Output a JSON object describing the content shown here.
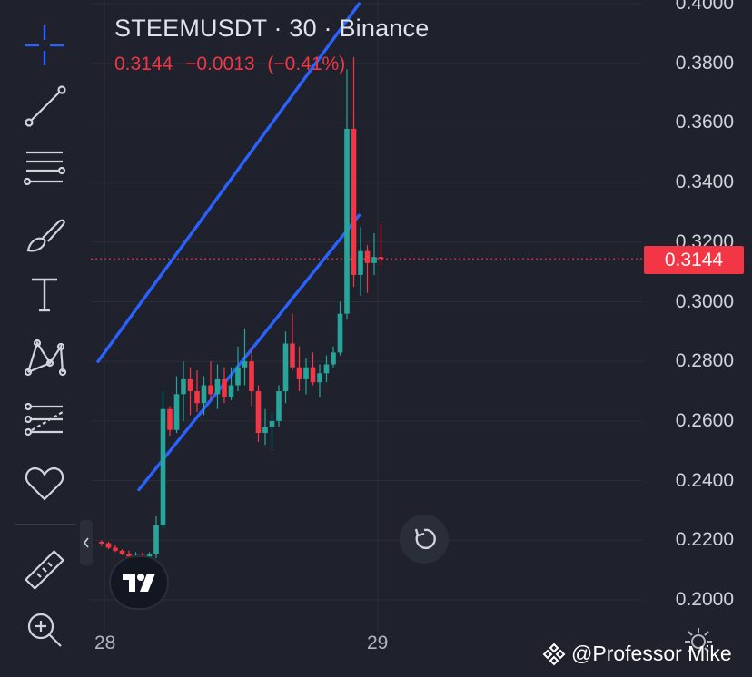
{
  "symbol_title": "STEEMUSDT · 30 · Binance",
  "quote": {
    "last": "0.3144",
    "change": "−0.0013",
    "change_pct": "(−0.41%)"
  },
  "current_price_tag": "0.3144",
  "price_axis": [
    "0.4000",
    "0.3800",
    "0.3600",
    "0.3400",
    "0.3200",
    "0.3000",
    "0.2800",
    "0.2600",
    "0.2400",
    "0.2200",
    "0.2000"
  ],
  "time_axis": [
    "28",
    "29"
  ],
  "watermark": "@Professor Mike",
  "colors": {
    "up": "#26a69a",
    "down": "#f23645",
    "trendline": "#2962ff",
    "background": "#1f222d",
    "grid": "#2a2e39"
  },
  "toolbar_icons": [
    "crosshair-icon",
    "trendline-icon",
    "fib-retracement-icon",
    "brush-icon",
    "text-icon",
    "pattern-icon",
    "prediction-icon",
    "favorites-heart-icon",
    "ruler-icon",
    "zoom-in-icon"
  ],
  "chart_data": {
    "type": "candlestick",
    "title": "STEEMUSDT · 30 · Binance",
    "interval": "30",
    "ylim": [
      0.195,
      0.402
    ],
    "last_price": 0.3144,
    "trendlines": [
      {
        "name": "upper-channel",
        "points": [
          [
            0,
            0.28
          ],
          [
            37,
            0.4
          ]
        ]
      },
      {
        "name": "lower-channel",
        "points": [
          [
            6,
            0.237
          ],
          [
            37,
            0.329
          ]
        ]
      }
    ],
    "candles": [
      {
        "o": 0.2195,
        "h": 0.22,
        "l": 0.218,
        "c": 0.219
      },
      {
        "o": 0.219,
        "h": 0.2195,
        "l": 0.217,
        "c": 0.2175
      },
      {
        "o": 0.2175,
        "h": 0.2185,
        "l": 0.216,
        "c": 0.2165
      },
      {
        "o": 0.2165,
        "h": 0.217,
        "l": 0.215,
        "c": 0.2155
      },
      {
        "o": 0.2155,
        "h": 0.2165,
        "l": 0.213,
        "c": 0.2145
      },
      {
        "o": 0.2145,
        "h": 0.216,
        "l": 0.21,
        "c": 0.215
      },
      {
        "o": 0.215,
        "h": 0.216,
        "l": 0.214,
        "c": 0.2145
      },
      {
        "o": 0.2145,
        "h": 0.216,
        "l": 0.213,
        "c": 0.2155
      },
      {
        "o": 0.2155,
        "h": 0.228,
        "l": 0.214,
        "c": 0.225
      },
      {
        "o": 0.225,
        "h": 0.27,
        "l": 0.224,
        "c": 0.264
      },
      {
        "o": 0.264,
        "h": 0.265,
        "l": 0.255,
        "c": 0.257
      },
      {
        "o": 0.257,
        "h": 0.275,
        "l": 0.256,
        "c": 0.269
      },
      {
        "o": 0.269,
        "h": 0.28,
        "l": 0.26,
        "c": 0.274
      },
      {
        "o": 0.274,
        "h": 0.278,
        "l": 0.262,
        "c": 0.27
      },
      {
        "o": 0.27,
        "h": 0.277,
        "l": 0.263,
        "c": 0.266
      },
      {
        "o": 0.266,
        "h": 0.275,
        "l": 0.262,
        "c": 0.272
      },
      {
        "o": 0.272,
        "h": 0.28,
        "l": 0.267,
        "c": 0.269
      },
      {
        "o": 0.269,
        "h": 0.279,
        "l": 0.264,
        "c": 0.274
      },
      {
        "o": 0.274,
        "h": 0.278,
        "l": 0.266,
        "c": 0.268
      },
      {
        "o": 0.268,
        "h": 0.278,
        "l": 0.267,
        "c": 0.272
      },
      {
        "o": 0.272,
        "h": 0.285,
        "l": 0.27,
        "c": 0.278
      },
      {
        "o": 0.278,
        "h": 0.291,
        "l": 0.272,
        "c": 0.28
      },
      {
        "o": 0.28,
        "h": 0.284,
        "l": 0.265,
        "c": 0.27
      },
      {
        "o": 0.27,
        "h": 0.272,
        "l": 0.253,
        "c": 0.256
      },
      {
        "o": 0.256,
        "h": 0.264,
        "l": 0.252,
        "c": 0.258
      },
      {
        "o": 0.258,
        "h": 0.263,
        "l": 0.25,
        "c": 0.26
      },
      {
        "o": 0.26,
        "h": 0.272,
        "l": 0.258,
        "c": 0.27
      },
      {
        "o": 0.27,
        "h": 0.29,
        "l": 0.266,
        "c": 0.286
      },
      {
        "o": 0.286,
        "h": 0.296,
        "l": 0.277,
        "c": 0.278
      },
      {
        "o": 0.278,
        "h": 0.285,
        "l": 0.27,
        "c": 0.274
      },
      {
        "o": 0.274,
        "h": 0.281,
        "l": 0.269,
        "c": 0.278
      },
      {
        "o": 0.278,
        "h": 0.283,
        "l": 0.272,
        "c": 0.273
      },
      {
        "o": 0.273,
        "h": 0.279,
        "l": 0.268,
        "c": 0.276
      },
      {
        "o": 0.276,
        "h": 0.282,
        "l": 0.273,
        "c": 0.279
      },
      {
        "o": 0.279,
        "h": 0.285,
        "l": 0.278,
        "c": 0.283
      },
      {
        "o": 0.283,
        "h": 0.3,
        "l": 0.282,
        "c": 0.296
      },
      {
        "o": 0.296,
        "h": 0.378,
        "l": 0.294,
        "c": 0.358
      },
      {
        "o": 0.358,
        "h": 0.382,
        "l": 0.305,
        "c": 0.309
      },
      {
        "o": 0.309,
        "h": 0.325,
        "l": 0.302,
        "c": 0.317
      },
      {
        "o": 0.317,
        "h": 0.319,
        "l": 0.303,
        "c": 0.313
      },
      {
        "o": 0.313,
        "h": 0.323,
        "l": 0.309,
        "c": 0.315
      },
      {
        "o": 0.315,
        "h": 0.326,
        "l": 0.312,
        "c": 0.3144
      }
    ]
  }
}
